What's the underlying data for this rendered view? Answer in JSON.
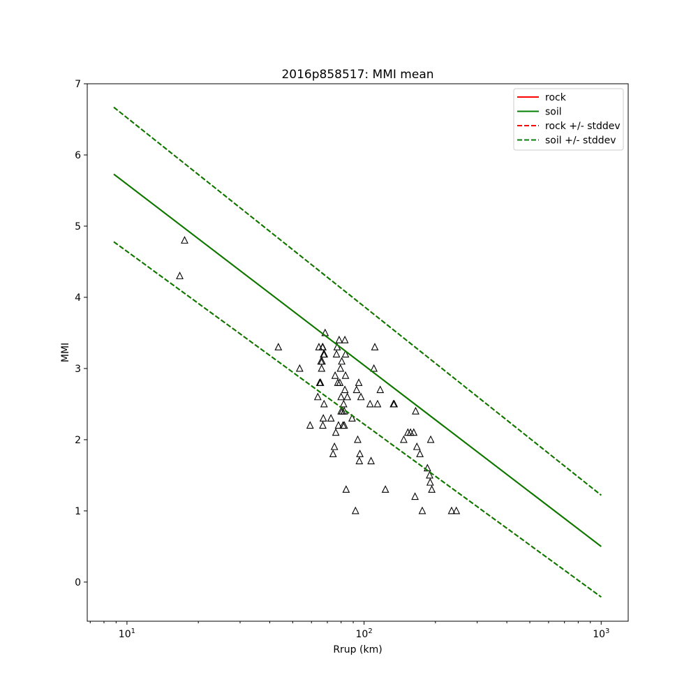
{
  "chart_data": {
    "type": "scatter",
    "title": "2016p858517: MMI mean",
    "xlabel": "Rrup (km)",
    "ylabel": "MMI",
    "xscale": "log",
    "xlim": [
      6.8,
      1300
    ],
    "ylim": [
      -0.55,
      7
    ],
    "xticks": [
      {
        "value": 10,
        "base": "10",
        "exp": "1"
      },
      {
        "value": 100,
        "base": "10",
        "exp": "2"
      },
      {
        "value": 1000,
        "base": "10",
        "exp": "3"
      }
    ],
    "yticks": [
      "0",
      "1",
      "2",
      "3",
      "4",
      "5",
      "6",
      "7"
    ],
    "grid": false,
    "legend_position": "top-right",
    "legend": [
      {
        "label": "rock",
        "color": "#ff0000",
        "style": "solid"
      },
      {
        "label": "soil",
        "color": "#008000",
        "style": "solid"
      },
      {
        "label": "rock +/- stddev",
        "color": "#ff0000",
        "style": "dashed"
      },
      {
        "label": "soil +/- stddev",
        "color": "#008000",
        "style": "dashed"
      }
    ],
    "lines": [
      {
        "name": "rock",
        "color": "#ff0000",
        "style": "solid",
        "x": [
          8.8,
          1000
        ],
        "y": [
          5.73,
          0.5
        ]
      },
      {
        "name": "soil",
        "color": "#008000",
        "style": "solid",
        "x": [
          8.8,
          1000
        ],
        "y": [
          5.73,
          0.5
        ]
      },
      {
        "name": "rock +/- stddev",
        "color": "#ff0000",
        "style": "dashed",
        "x": [
          8.8,
          1000
        ],
        "y": [
          6.67,
          1.22
        ]
      },
      {
        "name": "rock +/- stddev",
        "color": "#ff0000",
        "style": "dashed",
        "x": [
          8.8,
          1000
        ],
        "y": [
          4.78,
          -0.21
        ]
      },
      {
        "name": "soil +/- stddev",
        "color": "#008000",
        "style": "dashed",
        "x": [
          8.8,
          1000
        ],
        "y": [
          6.67,
          1.22
        ]
      },
      {
        "name": "soil +/- stddev",
        "color": "#008000",
        "style": "dashed",
        "x": [
          8.8,
          1000
        ],
        "y": [
          4.78,
          -0.21
        ]
      }
    ],
    "points": [
      {
        "x": 17.5,
        "y": 4.8
      },
      {
        "x": 16.7,
        "y": 4.3
      },
      {
        "x": 43.5,
        "y": 3.3
      },
      {
        "x": 53.5,
        "y": 3.0
      },
      {
        "x": 59.2,
        "y": 2.2
      },
      {
        "x": 63.8,
        "y": 2.6
      },
      {
        "x": 64.5,
        "y": 3.3
      },
      {
        "x": 65.0,
        "y": 2.8
      },
      {
        "x": 65.5,
        "y": 2.8
      },
      {
        "x": 65.8,
        "y": 3.1
      },
      {
        "x": 66.2,
        "y": 3.0
      },
      {
        "x": 66.5,
        "y": 3.1
      },
      {
        "x": 66.8,
        "y": 3.3
      },
      {
        "x": 67.0,
        "y": 3.3
      },
      {
        "x": 67.0,
        "y": 2.2
      },
      {
        "x": 67.3,
        "y": 2.3
      },
      {
        "x": 67.5,
        "y": 3.2
      },
      {
        "x": 67.8,
        "y": 2.5
      },
      {
        "x": 68.0,
        "y": 3.2
      },
      {
        "x": 68.5,
        "y": 3.5
      },
      {
        "x": 72.5,
        "y": 2.3
      },
      {
        "x": 74.0,
        "y": 1.8
      },
      {
        "x": 75.0,
        "y": 1.9
      },
      {
        "x": 75.5,
        "y": 2.9
      },
      {
        "x": 76.0,
        "y": 2.1
      },
      {
        "x": 76.5,
        "y": 3.2
      },
      {
        "x": 77.0,
        "y": 3.3
      },
      {
        "x": 77.5,
        "y": 2.8
      },
      {
        "x": 78.0,
        "y": 2.2
      },
      {
        "x": 78.5,
        "y": 3.4
      },
      {
        "x": 79.0,
        "y": 2.8
      },
      {
        "x": 79.5,
        "y": 3.0
      },
      {
        "x": 80.0,
        "y": 2.4
      },
      {
        "x": 80.0,
        "y": 2.6
      },
      {
        "x": 80.5,
        "y": 3.1
      },
      {
        "x": 81.0,
        "y": 2.4
      },
      {
        "x": 81.5,
        "y": 2.2
      },
      {
        "x": 82.0,
        "y": 2.5
      },
      {
        "x": 82.5,
        "y": 2.4
      },
      {
        "x": 82.5,
        "y": 2.2
      },
      {
        "x": 83.0,
        "y": 2.7
      },
      {
        "x": 83.0,
        "y": 3.4
      },
      {
        "x": 83.5,
        "y": 3.2
      },
      {
        "x": 83.5,
        "y": 2.9
      },
      {
        "x": 84.0,
        "y": 1.3
      },
      {
        "x": 85.0,
        "y": 2.6
      },
      {
        "x": 89.0,
        "y": 2.3
      },
      {
        "x": 92.0,
        "y": 1.0
      },
      {
        "x": 93.0,
        "y": 2.7
      },
      {
        "x": 94.0,
        "y": 2.0
      },
      {
        "x": 95.0,
        "y": 2.8
      },
      {
        "x": 95.5,
        "y": 1.7
      },
      {
        "x": 96.0,
        "y": 1.8
      },
      {
        "x": 97.0,
        "y": 2.6
      },
      {
        "x": 106.0,
        "y": 2.5
      },
      {
        "x": 107.0,
        "y": 1.7
      },
      {
        "x": 110.0,
        "y": 3.0
      },
      {
        "x": 111.0,
        "y": 3.3
      },
      {
        "x": 114.0,
        "y": 2.5
      },
      {
        "x": 117.0,
        "y": 2.7
      },
      {
        "x": 123.0,
        "y": 1.3
      },
      {
        "x": 133.0,
        "y": 2.5
      },
      {
        "x": 134.0,
        "y": 2.5
      },
      {
        "x": 147.0,
        "y": 2.0
      },
      {
        "x": 153.0,
        "y": 2.1
      },
      {
        "x": 157.0,
        "y": 2.1
      },
      {
        "x": 162.0,
        "y": 2.1
      },
      {
        "x": 164.0,
        "y": 1.2
      },
      {
        "x": 165.0,
        "y": 2.4
      },
      {
        "x": 167.0,
        "y": 1.9
      },
      {
        "x": 172.0,
        "y": 1.8
      },
      {
        "x": 176.0,
        "y": 1.0
      },
      {
        "x": 185.0,
        "y": 1.6
      },
      {
        "x": 189.0,
        "y": 1.5
      },
      {
        "x": 190.0,
        "y": 1.4
      },
      {
        "x": 191.0,
        "y": 2.0
      },
      {
        "x": 193.0,
        "y": 1.3
      },
      {
        "x": 234.0,
        "y": 1.0
      },
      {
        "x": 245.0,
        "y": 1.0
      }
    ]
  }
}
